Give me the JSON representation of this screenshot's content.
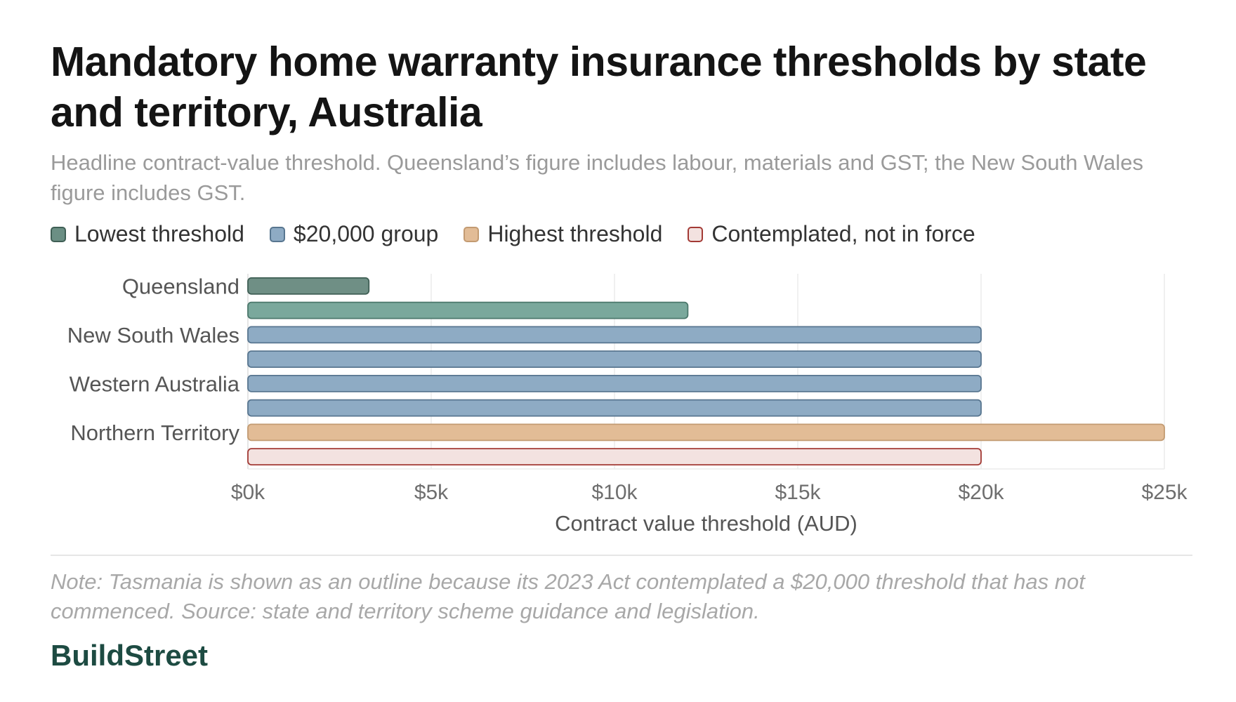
{
  "title": "Mandatory home warranty insurance thresholds by state and territory, Australia",
  "subtitle": "Headline contract-value threshold. Queensland’s figure includes labour, materials and GST; the New South Wales figure includes GST.",
  "legend": [
    {
      "label": "Lowest threshold",
      "fill": "#6b8f84",
      "stroke": "#3f5f55"
    },
    {
      "label": "$20,000 group",
      "fill": "#8eabc4",
      "stroke": "#587690"
    },
    {
      "label": "Highest threshold",
      "fill": "#e2bc96",
      "stroke": "#c39b72"
    },
    {
      "label": "Contemplated, not in force",
      "fill": "#f3e2e0",
      "stroke": "#a33a35"
    }
  ],
  "chart_data": {
    "type": "bar",
    "orientation": "horizontal",
    "categories": [
      "Queensland",
      "",
      "New South Wales",
      "",
      "Western Australia",
      "",
      "Northern Territory",
      ""
    ],
    "values": [
      3300,
      12000,
      20000,
      20000,
      20000,
      20000,
      25000,
      20000
    ],
    "bar_groups": [
      "Lowest threshold",
      "Lowest threshold",
      "$20,000 group",
      "$20,000 group",
      "$20,000 group",
      "$20,000 group",
      "Highest threshold",
      "Contemplated, not in force"
    ],
    "bar_colors": [
      {
        "fill": "#6f8f85",
        "stroke": "#3f5f55"
      },
      {
        "fill": "#7aa89c",
        "stroke": "#4c786c"
      },
      {
        "fill": "#8eabc4",
        "stroke": "#587690"
      },
      {
        "fill": "#8eabc4",
        "stroke": "#587690"
      },
      {
        "fill": "#8eabc4",
        "stroke": "#587690"
      },
      {
        "fill": "#8eabc4",
        "stroke": "#587690"
      },
      {
        "fill": "#e2bc96",
        "stroke": "#c39b72"
      },
      {
        "fill": "#f3e2e0",
        "stroke": "#a33a35"
      }
    ],
    "x_ticks": [
      0,
      5000,
      10000,
      15000,
      20000,
      25000
    ],
    "x_tick_labels": [
      "$0k",
      "$5k",
      "$10k",
      "$15k",
      "$20k",
      "$25k"
    ],
    "xlim": [
      0,
      25000
    ],
    "xlabel": "Contract value threshold (AUD)",
    "ylabel": "",
    "grid": "vertical",
    "legend_position": "top-left"
  },
  "note": "Note: Tasmania is shown as an outline because its 2023 Act contemplated a $20,000 threshold that has not commenced. Source: state and territory scheme guidance and legislation.",
  "brand": "BuildStreet"
}
